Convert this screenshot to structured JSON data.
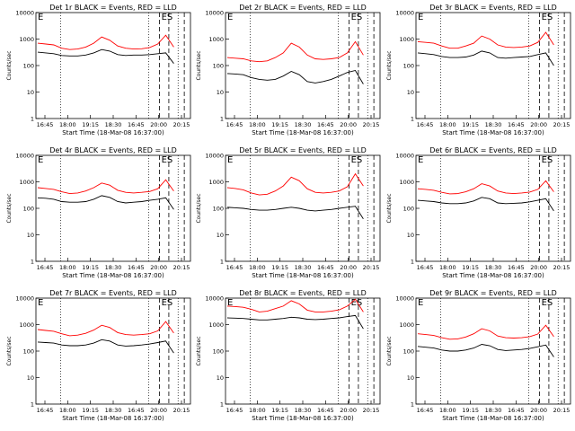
{
  "x_start_label": "Start Time (18-Mar-08 16:37:00)",
  "y_label": "Counts/sec",
  "x_tick_labels": [
    "16:45",
    "18:00",
    "19:15",
    "18:30",
    "16:45",
    "20:00",
    "20:15"
  ],
  "y_tick_labels": [
    "1",
    "10",
    "100",
    "1000",
    "10000"
  ],
  "legend_note": "BLACK = Events, RED = LLD",
  "colors": {
    "events": "#000000",
    "lld": "#ff0000"
  },
  "chart_data": [
    {
      "type": "line",
      "title": "Det 1r BLACK = Events, RED = LLD",
      "scale": "log",
      "ylim": [
        1,
        10000
      ],
      "markers": {
        "left": "E",
        "right": "ES"
      },
      "series": [
        {
          "name": "Events",
          "values": [
            320,
            300,
            280,
            240,
            230,
            230,
            250,
            300,
            400,
            350,
            260,
            240,
            250,
            250,
            260,
            280,
            300,
            120
          ]
        },
        {
          "name": "LLD",
          "values": [
            700,
            650,
            600,
            450,
            400,
            420,
            500,
            700,
            1200,
            900,
            550,
            450,
            420,
            430,
            480,
            650,
            1400,
            500
          ]
        }
      ]
    },
    {
      "type": "line",
      "title": "Det 2r BLACK = Events, RED = LLD",
      "scale": "log",
      "ylim": [
        1,
        10000
      ],
      "markers": {
        "left": "E",
        "right": "ES"
      },
      "series": [
        {
          "name": "Events",
          "values": [
            50,
            48,
            45,
            35,
            30,
            28,
            30,
            40,
            60,
            45,
            25,
            22,
            25,
            30,
            40,
            55,
            65,
            20
          ]
        },
        {
          "name": "LLD",
          "values": [
            200,
            190,
            180,
            150,
            140,
            150,
            200,
            300,
            700,
            500,
            250,
            180,
            170,
            180,
            200,
            300,
            800,
            250
          ]
        }
      ]
    },
    {
      "type": "line",
      "title": "Det 3r BLACK = Events, RED = LLD",
      "scale": "log",
      "ylim": [
        1,
        10000
      ],
      "markers": {
        "left": "E",
        "right": "ES"
      },
      "series": [
        {
          "name": "Events",
          "values": [
            300,
            280,
            260,
            220,
            200,
            200,
            210,
            250,
            350,
            300,
            200,
            190,
            200,
            210,
            220,
            260,
            300,
            100
          ]
        },
        {
          "name": "LLD",
          "values": [
            800,
            750,
            700,
            550,
            450,
            450,
            550,
            700,
            1300,
            1000,
            600,
            500,
            480,
            500,
            550,
            750,
            1800,
            600
          ]
        }
      ]
    },
    {
      "type": "line",
      "title": "Det 4r BLACK = Events, RED = LLD",
      "scale": "log",
      "ylim": [
        1,
        10000
      ],
      "markers": {
        "left": "E",
        "right": "ES"
      },
      "series": [
        {
          "name": "Events",
          "values": [
            250,
            240,
            220,
            180,
            170,
            170,
            180,
            220,
            300,
            260,
            180,
            160,
            170,
            180,
            200,
            220,
            250,
            90
          ]
        },
        {
          "name": "LLD",
          "values": [
            600,
            560,
            520,
            420,
            360,
            380,
            450,
            600,
            900,
            750,
            480,
            400,
            380,
            400,
            430,
            550,
            1200,
            450
          ]
        }
      ]
    },
    {
      "type": "line",
      "title": "Det 5r BLACK = Events, RED = LLD",
      "scale": "log",
      "ylim": [
        1,
        10000
      ],
      "markers": {
        "left": "E",
        "right": "ES"
      },
      "series": [
        {
          "name": "Events",
          "values": [
            110,
            105,
            100,
            90,
            85,
            85,
            90,
            100,
            110,
            100,
            85,
            80,
            85,
            90,
            100,
            110,
            120,
            40
          ]
        },
        {
          "name": "LLD",
          "values": [
            600,
            560,
            500,
            380,
            320,
            340,
            450,
            700,
            1500,
            1100,
            550,
            400,
            380,
            400,
            450,
            650,
            2000,
            700
          ]
        }
      ]
    },
    {
      "type": "line",
      "title": "Det 6r BLACK = Events, RED = LLD",
      "scale": "log",
      "ylim": [
        1,
        10000
      ],
      "markers": {
        "left": "E",
        "right": "ES"
      },
      "series": [
        {
          "name": "Events",
          "values": [
            200,
            190,
            180,
            160,
            150,
            150,
            160,
            190,
            260,
            230,
            160,
            150,
            155,
            160,
            175,
            200,
            230,
            80
          ]
        },
        {
          "name": "LLD",
          "values": [
            550,
            520,
            480,
            400,
            350,
            360,
            420,
            550,
            850,
            700,
            450,
            380,
            360,
            380,
            410,
            520,
            1100,
            420
          ]
        }
      ]
    },
    {
      "type": "line",
      "title": "Det 7r BLACK = Events, RED = LLD",
      "scale": "log",
      "ylim": [
        1,
        10000
      ],
      "markers": {
        "left": "E",
        "right": "ES"
      },
      "series": [
        {
          "name": "Events",
          "values": [
            220,
            210,
            200,
            170,
            160,
            160,
            170,
            200,
            270,
            240,
            170,
            155,
            160,
            170,
            185,
            210,
            240,
            85
          ]
        },
        {
          "name": "LLD",
          "values": [
            650,
            600,
            560,
            450,
            380,
            400,
            470,
            620,
            950,
            780,
            500,
            420,
            400,
            420,
            450,
            580,
            1300,
            480
          ]
        }
      ]
    },
    {
      "type": "line",
      "title": "Det 8r BLACK = Events, RED = LLD",
      "scale": "log",
      "ylim": [
        1,
        10000
      ],
      "markers": {
        "left": "E",
        "right": "ES"
      },
      "series": [
        {
          "name": "Events",
          "values": [
            1800,
            1750,
            1700,
            1600,
            1500,
            1500,
            1600,
            1700,
            1900,
            1800,
            1600,
            1550,
            1600,
            1700,
            1800,
            2000,
            2200,
            700
          ]
        },
        {
          "name": "LLD",
          "values": [
            5000,
            4800,
            4500,
            3800,
            3000,
            3200,
            4000,
            5000,
            8000,
            6000,
            3500,
            3000,
            3000,
            3200,
            3600,
            5000,
            9000,
            3000
          ]
        }
      ]
    },
    {
      "type": "line",
      "title": "Det 9r BLACK = Events, RED = LLD",
      "scale": "log",
      "ylim": [
        1,
        10000
      ],
      "markers": {
        "left": "E",
        "right": "ES"
      },
      "series": [
        {
          "name": "Events",
          "values": [
            150,
            140,
            130,
            110,
            100,
            100,
            110,
            130,
            180,
            160,
            115,
            105,
            110,
            115,
            125,
            145,
            170,
            60
          ]
        },
        {
          "name": "LLD",
          "values": [
            450,
            420,
            390,
            320,
            280,
            290,
            340,
            450,
            700,
            580,
            370,
            320,
            310,
            320,
            350,
            440,
            950,
            350
          ]
        }
      ]
    }
  ]
}
